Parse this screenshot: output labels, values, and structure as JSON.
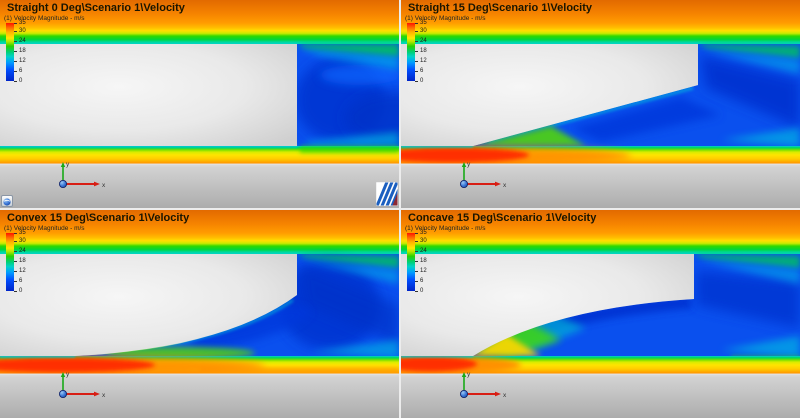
{
  "app": {
    "description": "CFD results viewer with four velocity cut-plot viewports",
    "layout": "2x2-viewports"
  },
  "field": {
    "name": "Velocity Magnitude",
    "unit": "m/s"
  },
  "panels": [
    {
      "id": "straight-0-deg",
      "title": "Straight 0 Deg\\Scenario 1\\Velocity",
      "legend_title": "(1) Velocity Magnitude - m/s",
      "colorbar": {
        "max": 35,
        "min": 0,
        "ticks": [
          35,
          30,
          24,
          18,
          12,
          6,
          0
        ],
        "unit": "m/s"
      },
      "triad": {
        "x_label": "x",
        "y_label": "y"
      },
      "geometry": "blunt body, 0 degree base (vertical step)",
      "has_brand_logo": true,
      "has_view_button": true
    },
    {
      "id": "straight-15-deg",
      "title": "Straight 15 Deg\\Scenario 1\\Velocity",
      "legend_title": "(1) Velocity Magnitude - m/s",
      "colorbar": {
        "max": 35,
        "min": 0,
        "ticks": [
          35,
          30,
          24,
          18,
          12,
          6,
          0
        ],
        "unit": "m/s"
      },
      "triad": {
        "x_label": "x",
        "y_label": "y"
      },
      "geometry": "straight 15 degree boat-tail ramp",
      "has_brand_logo": false,
      "has_view_button": false
    },
    {
      "id": "convex-15-deg",
      "title": "Convex 15 Deg\\Scenario 1\\Velocity",
      "legend_title": "(1) Velocity Magnitude - m/s",
      "colorbar": {
        "max": 35,
        "min": 0,
        "ticks": [
          35,
          30,
          24,
          18,
          12,
          6,
          0
        ],
        "unit": "m/s"
      },
      "triad": {
        "x_label": "x",
        "y_label": "y"
      },
      "geometry": "convex 15 degree boat-tail ramp",
      "has_brand_logo": false,
      "has_view_button": false
    },
    {
      "id": "concave-15-deg",
      "title": "Concave 15 Deg\\Scenario 1\\Velocity",
      "legend_title": "(1) Velocity Magnitude - m/s",
      "colorbar": {
        "max": 35,
        "min": 0,
        "ticks": [
          35,
          30,
          24,
          18,
          12,
          6,
          0
        ],
        "unit": "m/s"
      },
      "triad": {
        "x_label": "x",
        "y_label": "y"
      },
      "geometry": "concave 15 degree boat-tail ramp",
      "has_brand_logo": false,
      "has_view_button": false
    }
  ],
  "colors": {
    "colormap": [
      "#FF1400",
      "#FF6A00",
      "#FFB400",
      "#FFE800",
      "#B4E800",
      "#28D200",
      "#00D075",
      "#00D2C8",
      "#009CFF",
      "#0050FF",
      "#0024C8"
    ],
    "freestream_orange": "#FF8C00",
    "wake_blue": "#0A50EE",
    "jet_red": "#FF2A00",
    "body_gray": "#E8E8E8",
    "wall_gray": "#BDBDBD"
  }
}
